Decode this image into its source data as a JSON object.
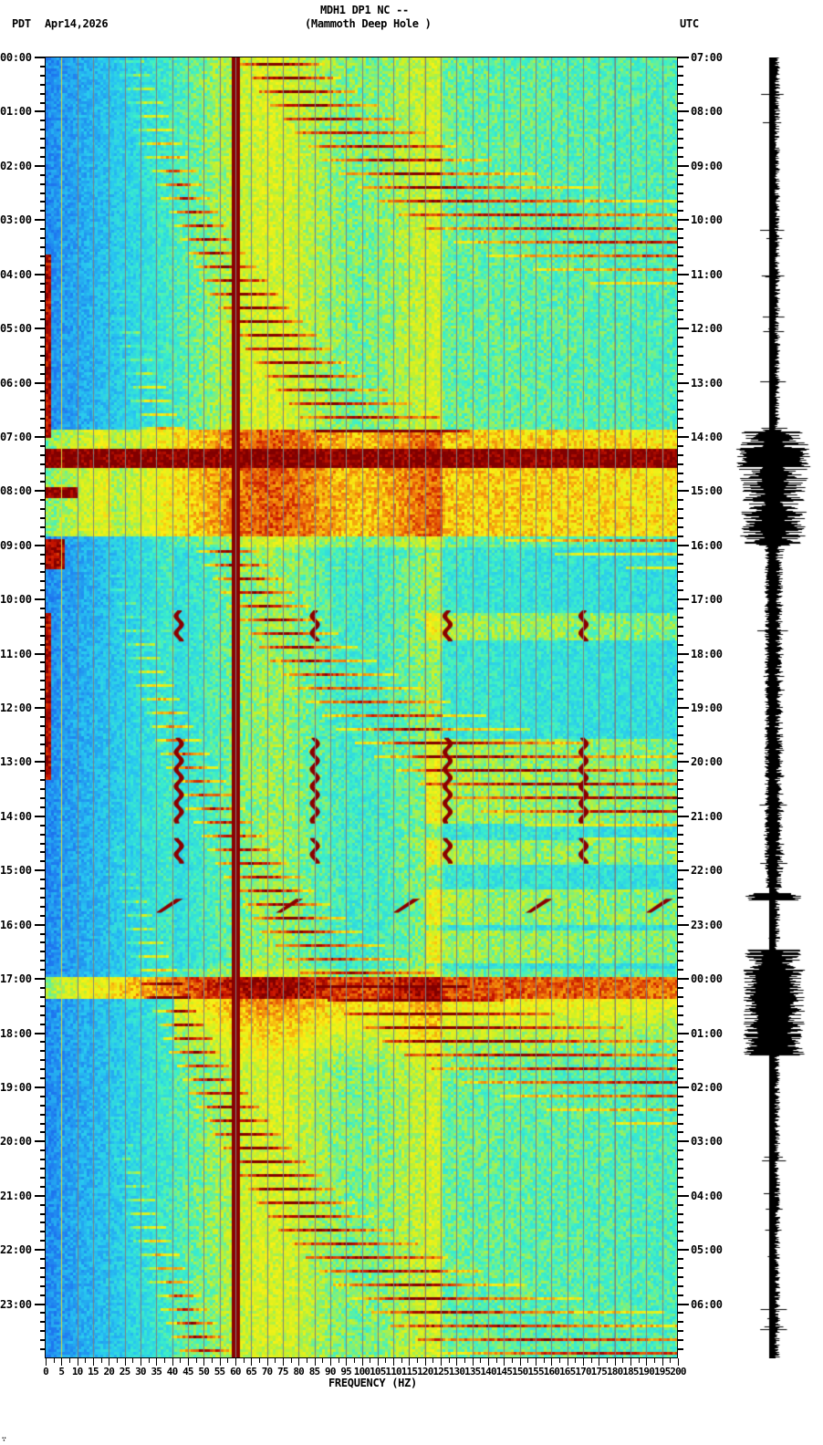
{
  "header": {
    "station_line": "MDH1 DP1 NC --",
    "site_line": "(Mammoth Deep Hole )",
    "left_timezone": "PDT",
    "date": "Apr14,2026",
    "right_timezone": "UTC"
  },
  "axes": {
    "x_label": "FREQUENCY (HZ)",
    "x_ticks": [
      "0",
      "5",
      "10",
      "15",
      "20",
      "25",
      "30",
      "35",
      "40",
      "45",
      "50",
      "55",
      "60",
      "65",
      "70",
      "75",
      "80",
      "85",
      "90",
      "95",
      "100",
      "105",
      "110",
      "115",
      "120",
      "125",
      "130",
      "135",
      "140",
      "145",
      "150",
      "155",
      "160",
      "165",
      "170",
      "175",
      "180",
      "185",
      "190",
      "195",
      "200"
    ],
    "left_time_ticks": [
      "00:00",
      "01:00",
      "02:00",
      "03:00",
      "04:00",
      "05:00",
      "06:00",
      "07:00",
      "08:00",
      "09:00",
      "10:00",
      "11:00",
      "12:00",
      "13:00",
      "14:00",
      "15:00",
      "16:00",
      "17:00",
      "18:00",
      "19:00",
      "20:00",
      "21:00",
      "22:00",
      "23:00"
    ],
    "right_time_ticks": [
      "07:00",
      "08:00",
      "09:00",
      "10:00",
      "11:00",
      "12:00",
      "13:00",
      "14:00",
      "15:00",
      "16:00",
      "17:00",
      "18:00",
      "19:00",
      "20:00",
      "21:00",
      "22:00",
      "23:00",
      "00:00",
      "01:00",
      "02:00",
      "03:00",
      "04:00",
      "05:00",
      "06:00"
    ]
  },
  "footer_mark": "∵",
  "colors": {
    "low": "#1e6fe0",
    "mid_low": "#29d0e8",
    "mid": "#3ef0c8",
    "mid_high": "#f0f020",
    "high": "#f07010",
    "peak": "#8b0000",
    "gridline": "#808080",
    "trace": "#000000"
  },
  "chart_data": {
    "type": "heatmap",
    "title": "MDH1 DP1 NC -- (Mammoth Deep Hole )",
    "subtitle": "Apr14,2026",
    "xlabel": "FREQUENCY (HZ)",
    "ylabel_left": "PDT",
    "ylabel_right": "UTC",
    "xlim": [
      0,
      200
    ],
    "x_tick_step": 5,
    "ylim_hours_pdt": [
      0,
      24
    ],
    "utc_offset_hours": 7,
    "grid": true,
    "colormap": "jet (blue = low power, dark red = high power)",
    "persistent_features": [
      {
        "type": "line",
        "freq_hz": 60,
        "description": "continuous power-line spike, full day"
      },
      {
        "type": "line",
        "freq_hz": 120,
        "description": "faint harmonic line"
      },
      {
        "type": "line",
        "freq_hz": 180,
        "description": "faint harmonic line"
      },
      {
        "type": "sweeping-tones",
        "freq_range_hz": [
          20,
          200
        ],
        "description": "repeating rising tonal streaks every ~15 min"
      }
    ],
    "events": [
      {
        "start_pdt": "06:50",
        "end_pdt": "08:50",
        "freq_range_hz": [
          0,
          200
        ],
        "description": "broadband high-energy event; saturated 07:15-07:35"
      },
      {
        "start_pdt": "08:50",
        "end_pdt": "09:25",
        "freq_range_hz": [
          0,
          6
        ],
        "description": "low-frequency energy"
      },
      {
        "start_pdt": "10:10",
        "end_pdt": "10:45",
        "freq_range_hz": [
          40,
          200
        ],
        "description": "intermittent tonal bursts near 42, 85, 127, 170 Hz"
      },
      {
        "start_pdt": "12:30",
        "end_pdt": "14:00",
        "freq_range_hz": [
          40,
          200
        ],
        "description": "tonal bursts near 42, 85, 127, 170 Hz"
      },
      {
        "start_pdt": "14:25",
        "end_pdt": "14:50",
        "freq_range_hz": [
          40,
          200
        ],
        "description": "tonal bursts near 42, 85, 127, 170 Hz"
      },
      {
        "start_pdt": "15:30",
        "end_pdt": "15:55",
        "freq_range_hz": [
          35,
          200
        ],
        "description": "diagonal chirps near 40, 78, 115, 157, 195 Hz"
      },
      {
        "start_pdt": "16:45",
        "end_pdt": "18:30",
        "freq_range_hz": [
          0,
          200
        ],
        "description": "broadband event onset ~17:00, decaying"
      }
    ],
    "seismogram": {
      "description": "vertical trace to right of spectrogram",
      "high_amplitude_windows_pdt": [
        [
          "06:50",
          "09:00"
        ],
        [
          "15:25",
          "15:45"
        ],
        [
          "16:30",
          "18:25"
        ]
      ]
    }
  }
}
